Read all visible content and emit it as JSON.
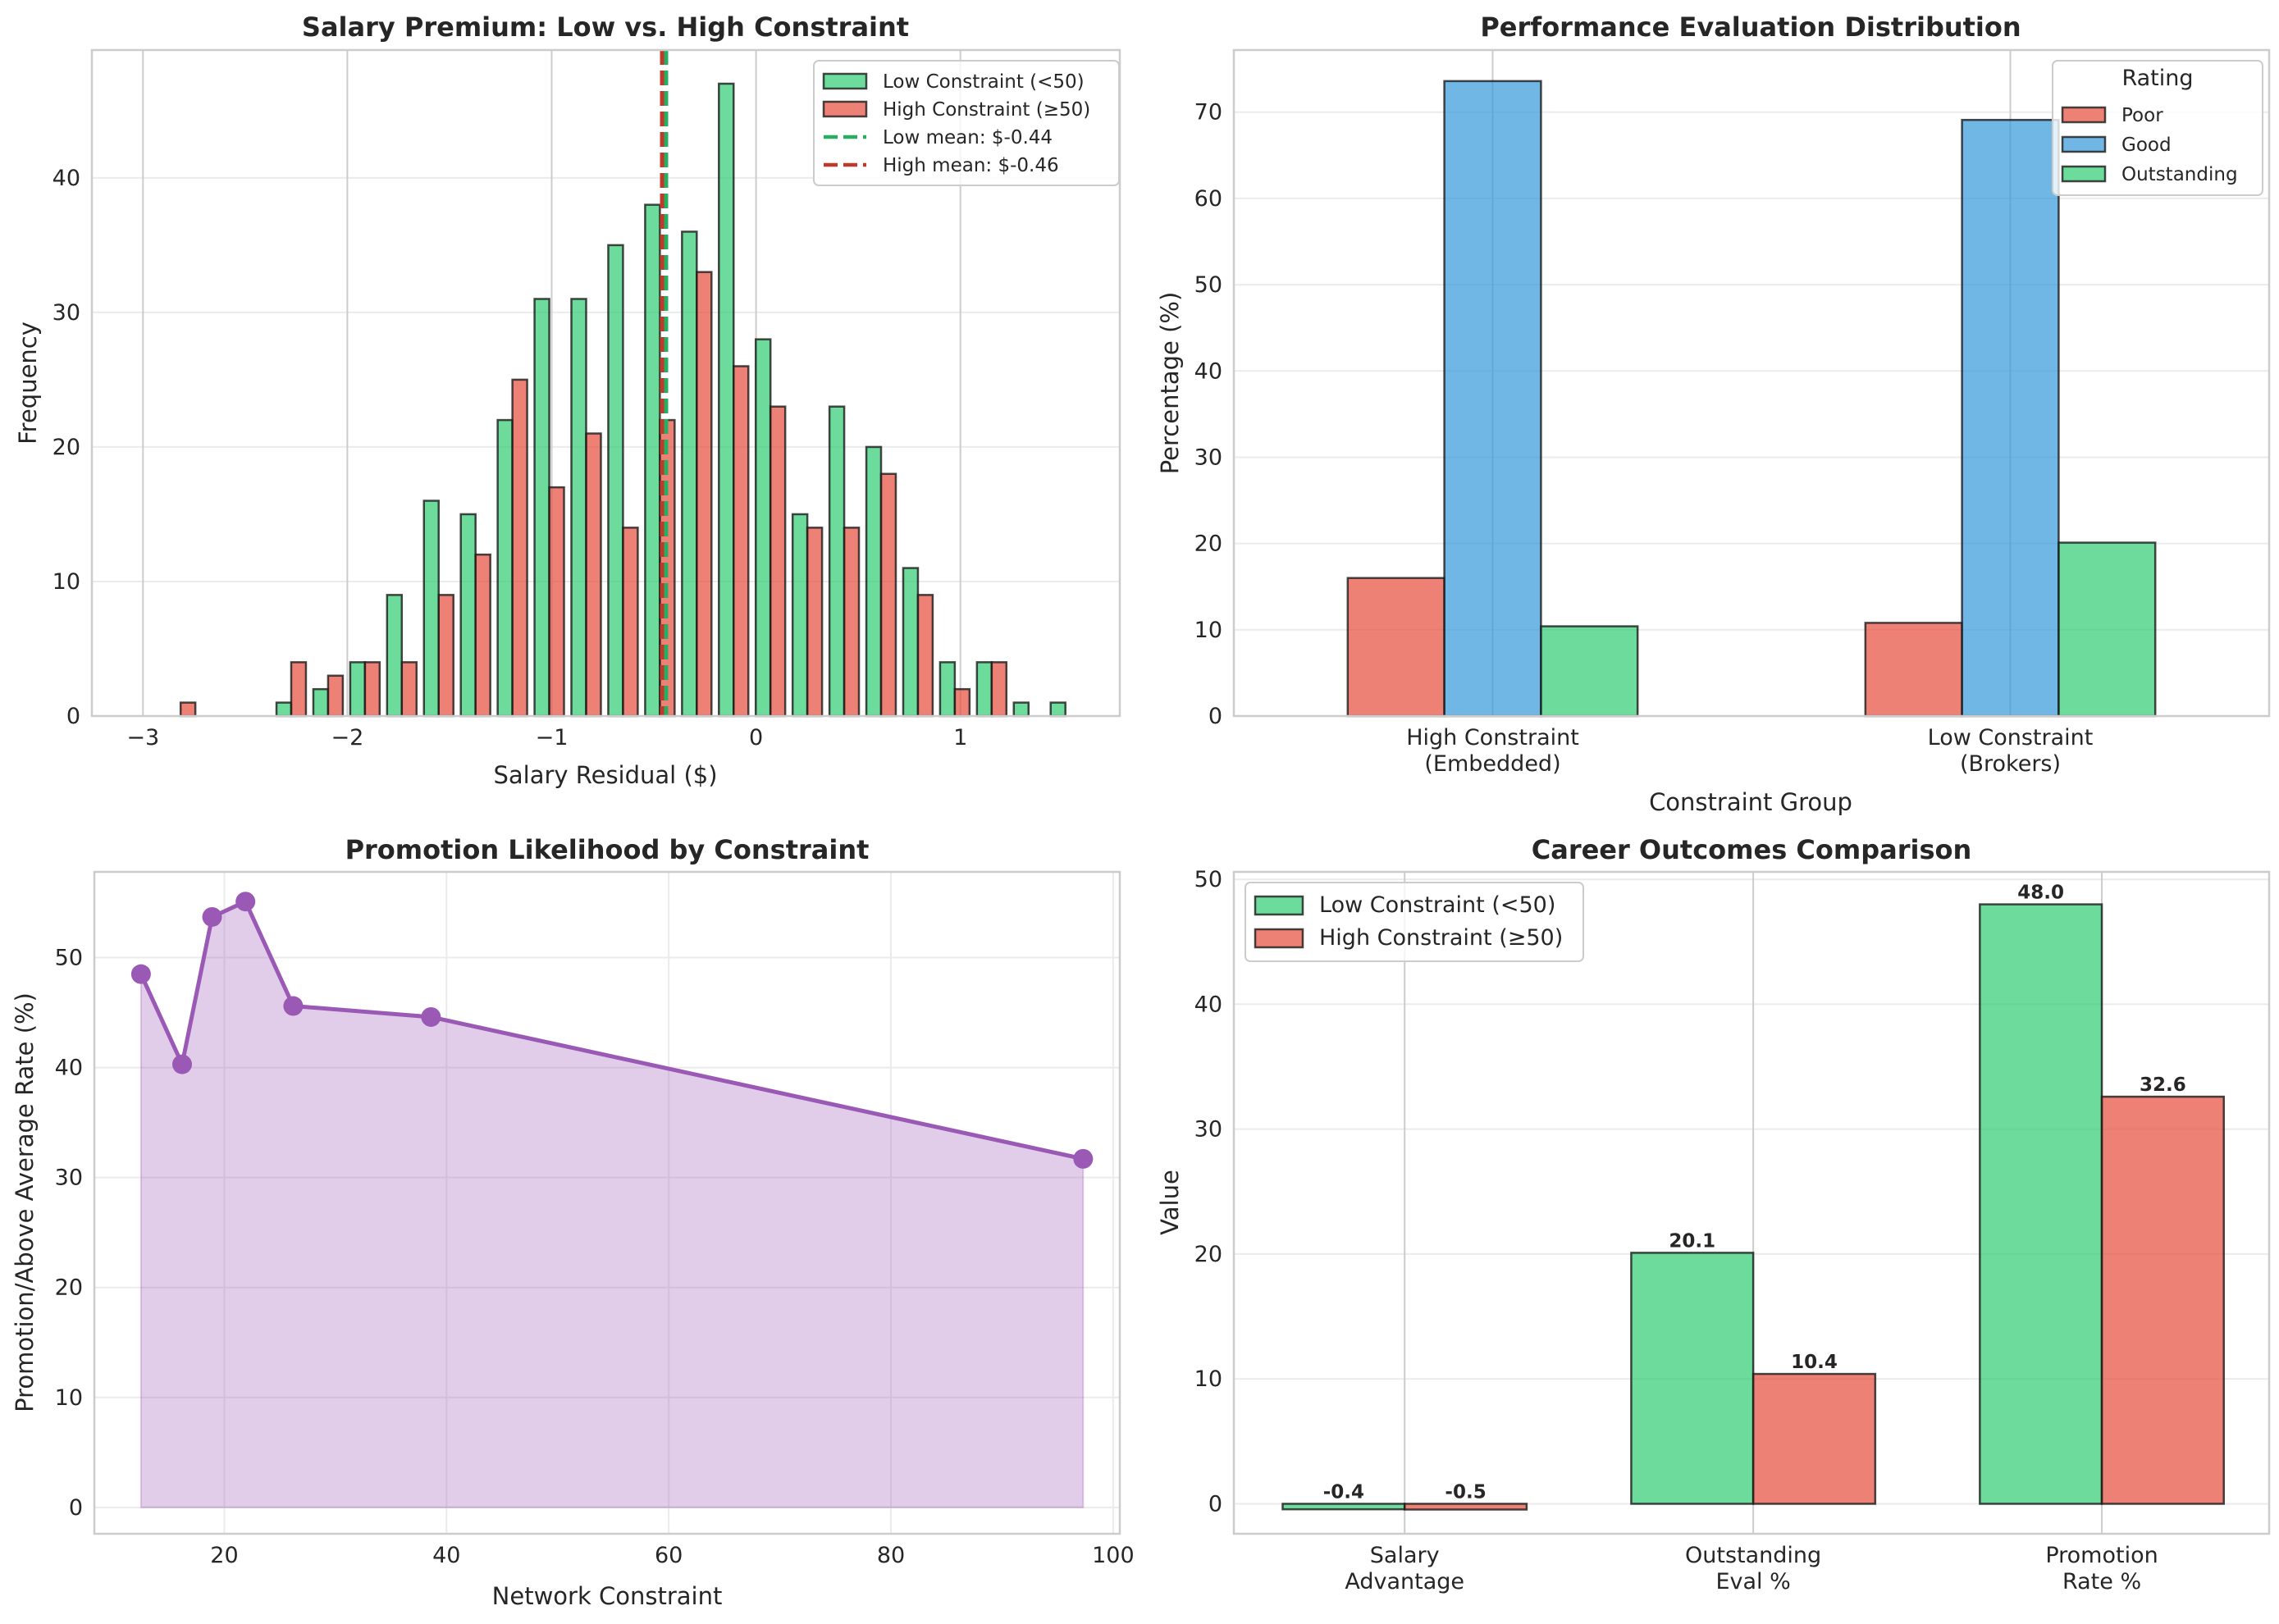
{
  "colors": {
    "low": "#2ecc71",
    "high": "#e74c3c",
    "good": "#3498db",
    "purple": "#9b59b6",
    "low_mean_line": "#27ae60",
    "high_mean_line": "#c0392b",
    "edge": "#1a1a1a"
  },
  "chart_data": [
    {
      "id": "salary-hist",
      "type": "bar",
      "subtype": "histogram-side-by-side",
      "title": "Salary Premium: Low vs. High Constraint",
      "xlabel": "Salary Residual ($)",
      "ylabel": "Frequency",
      "xlim": [
        -3.25,
        1.78
      ],
      "ylim": [
        0,
        49.5
      ],
      "xticks": [
        -3,
        -2,
        -1,
        0,
        1
      ],
      "xtick_labels": [
        "−3",
        "−2",
        "−1",
        "0",
        "1"
      ],
      "yticks": [
        0,
        10,
        20,
        30,
        40
      ],
      "ytick_labels": [
        "0",
        "10",
        "20",
        "30",
        "40"
      ],
      "grid": true,
      "bin_start": -2.906,
      "bin_width": 0.1804,
      "series": [
        {
          "name": "Low Constraint (<50)",
          "color_key": "low",
          "values": [
            0,
            0,
            0,
            1,
            2,
            4,
            9,
            16,
            15,
            22,
            31,
            31,
            35,
            38,
            36,
            47,
            28,
            15,
            23,
            20,
            11,
            4,
            4,
            1,
            1
          ]
        },
        {
          "name": "High Constraint (≥50)",
          "color_key": "high",
          "values": [
            1,
            0,
            0,
            4,
            3,
            4,
            4,
            9,
            12,
            25,
            17,
            21,
            14,
            22,
            33,
            26,
            23,
            14,
            14,
            18,
            9,
            2,
            4,
            0,
            0
          ]
        }
      ],
      "vlines": [
        {
          "name": "Low mean: $-0.44",
          "x": -0.44,
          "color_key": "low_mean_line"
        },
        {
          "name": "High mean: $-0.46",
          "x": -0.46,
          "color_key": "high_mean_line"
        }
      ],
      "legend": {
        "placement": "top-right",
        "entries": [
          {
            "label": "Low Constraint (<50)",
            "kind": "patch",
            "color_key": "low"
          },
          {
            "label": "High Constraint (≥50)",
            "kind": "patch",
            "color_key": "high"
          },
          {
            "label": "Low mean: $-0.44",
            "kind": "dash",
            "color_key": "low_mean_line"
          },
          {
            "label": "High mean: $-0.46",
            "kind": "dash",
            "color_key": "high_mean_line"
          }
        ]
      }
    },
    {
      "id": "perf-eval",
      "type": "bar",
      "title": "Performance Evaluation Distribution",
      "xlabel": "Constraint Group",
      "ylabel": "Percentage (%)",
      "categories": [
        "High Constraint\n(Embedded)",
        "Low Constraint\n(Brokers)"
      ],
      "ylim": [
        0,
        77.2
      ],
      "yticks": [
        0,
        10,
        20,
        30,
        40,
        50,
        60,
        70
      ],
      "ytick_labels": [
        "0",
        "10",
        "20",
        "30",
        "40",
        "50",
        "60",
        "70"
      ],
      "grid": true,
      "series": [
        {
          "name": "Poor",
          "color_key": "high",
          "values": [
            16.0,
            10.8
          ]
        },
        {
          "name": "Good",
          "color_key": "good",
          "values": [
            73.6,
            69.1
          ]
        },
        {
          "name": "Outstanding",
          "color_key": "low",
          "values": [
            10.4,
            20.1
          ]
        }
      ],
      "legend": {
        "placement": "top-right",
        "title": "Rating",
        "entries": [
          {
            "label": "Poor",
            "kind": "patch",
            "color_key": "high"
          },
          {
            "label": "Good",
            "kind": "patch",
            "color_key": "good"
          },
          {
            "label": "Outstanding",
            "kind": "patch",
            "color_key": "low"
          }
        ]
      }
    },
    {
      "id": "promo-likelihood",
      "type": "area",
      "title": "Promotion Likelihood by Constraint",
      "xlabel": "Network Constraint",
      "ylabel": "Promotion/Above Average Rate (%)",
      "x": [
        12.5,
        16.2,
        18.9,
        21.9,
        26.2,
        38.6,
        97.3
      ],
      "y": [
        48.5,
        40.3,
        53.7,
        55.1,
        45.6,
        44.6,
        31.7
      ],
      "xlim": [
        8.3,
        100.6
      ],
      "ylim": [
        -2.4,
        57.8
      ],
      "xticks": [
        20,
        40,
        60,
        80,
        100
      ],
      "xtick_labels": [
        "20",
        "40",
        "60",
        "80",
        "100"
      ],
      "yticks": [
        0,
        10,
        20,
        30,
        40,
        50
      ],
      "ytick_labels": [
        "0",
        "10",
        "20",
        "30",
        "40",
        "50"
      ],
      "grid": true,
      "color_key": "purple"
    },
    {
      "id": "career-outcomes",
      "type": "bar",
      "title": "Career Outcomes Comparison",
      "xlabel": "",
      "ylabel": "Value",
      "categories": [
        "Salary\nAdvantage",
        "Outstanding\nEval %",
        "Promotion\nRate %"
      ],
      "ylim": [
        -2.4,
        50.6
      ],
      "yticks": [
        0,
        10,
        20,
        30,
        40,
        50
      ],
      "ytick_labels": [
        "0",
        "10",
        "20",
        "30",
        "40",
        "50"
      ],
      "grid": true,
      "series": [
        {
          "name": "Low Constraint (<50)",
          "color_key": "low",
          "values": [
            -0.44,
            20.1,
            48.0
          ],
          "labels": [
            "-0.4",
            "20.1",
            "48.0"
          ]
        },
        {
          "name": "High Constraint (≥50)",
          "color_key": "high",
          "values": [
            -0.46,
            10.4,
            32.6
          ],
          "labels": [
            "-0.5",
            "10.4",
            "32.6"
          ]
        }
      ],
      "legend": {
        "placement": "top-left",
        "entries": [
          {
            "label": "Low Constraint (<50)",
            "kind": "patch",
            "color_key": "low"
          },
          {
            "label": "High Constraint (≥50)",
            "kind": "patch",
            "color_key": "high"
          }
        ]
      }
    }
  ]
}
